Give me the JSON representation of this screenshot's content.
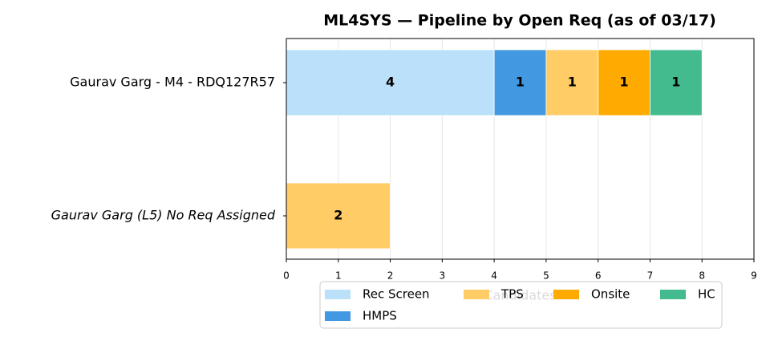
{
  "chart_data": {
    "type": "stacked_barh",
    "title": "ML4SYS — Pipeline by Open Req (as of 03/17)",
    "categories": [
      "Gaurav Garg - M4 - RDQ127R57",
      "Gaurav Garg (L5) No Req Assigned"
    ],
    "category_colors": [
      "#000000",
      "#cc0000"
    ],
    "category_styles": [
      "normal",
      "italic"
    ],
    "series": [
      {
        "name": "Rec Screen",
        "color": "#bbe1fa",
        "values": [
          4,
          0
        ]
      },
      {
        "name": "HMPS",
        "color": "#4299e1",
        "values": [
          1,
          0
        ]
      },
      {
        "name": "TPS",
        "color": "#ffcc66",
        "values": [
          1,
          2
        ]
      },
      {
        "name": "Onsite",
        "color": "#ffaa00",
        "values": [
          1,
          0
        ]
      },
      {
        "name": "HC",
        "color": "#44bb8f",
        "values": [
          1,
          0
        ]
      }
    ],
    "xlabel": "Candidates",
    "xlim": [
      0,
      9
    ],
    "xticks": [
      0,
      1,
      2,
      3,
      4,
      5,
      6,
      7,
      8,
      9
    ],
    "grid": true,
    "legend": "lower center"
  }
}
